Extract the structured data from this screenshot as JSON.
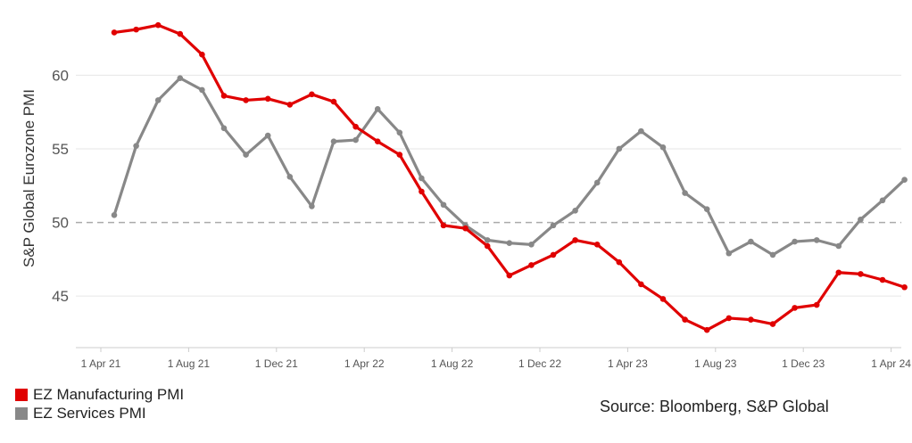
{
  "chart_data": {
    "type": "line",
    "ylabel": "S&P Global Eurozone PMI",
    "ylim": [
      41.5,
      64.5
    ],
    "yticks": [
      45,
      50,
      55,
      60
    ],
    "x_tick_labels": [
      "1 Apr 21",
      "1 Aug 21",
      "1 Dec 21",
      "1 Apr 22",
      "1 Aug 22",
      "1 Dec 22",
      "1 Apr 23",
      "1 Aug 23",
      "1 Dec 23",
      "1 Apr 24"
    ],
    "x_start": "Apr 2021",
    "reference_line": 50,
    "grid": "horizontal",
    "legend_position": "bottom-left",
    "series": [
      {
        "name": "EZ Manufacturing PMI",
        "color": "#e00000",
        "values": [
          62.9,
          63.1,
          63.4,
          62.8,
          61.4,
          58.6,
          58.3,
          58.4,
          58.0,
          58.7,
          58.2,
          56.5,
          55.5,
          54.6,
          52.1,
          49.8,
          49.6,
          48.4,
          46.4,
          47.1,
          47.8,
          48.8,
          48.5,
          47.3,
          45.8,
          44.8,
          43.4,
          42.7,
          43.5,
          43.4,
          43.1,
          44.2,
          44.4,
          46.6,
          46.5,
          46.1,
          45.6
        ]
      },
      {
        "name": "EZ Services PMI",
        "color": "#888888",
        "values": [
          50.5,
          55.2,
          58.3,
          59.8,
          59.0,
          56.4,
          54.6,
          55.9,
          53.1,
          51.1,
          55.5,
          55.6,
          57.7,
          56.1,
          53.0,
          51.2,
          49.8,
          48.8,
          48.6,
          48.5,
          49.8,
          50.8,
          52.7,
          55.0,
          56.2,
          55.1,
          52.0,
          50.9,
          47.9,
          48.7,
          47.8,
          48.7,
          48.8,
          48.4,
          50.2,
          51.5,
          52.9
        ]
      }
    ]
  },
  "source_text": "Source: Bloomberg, S&P Global"
}
